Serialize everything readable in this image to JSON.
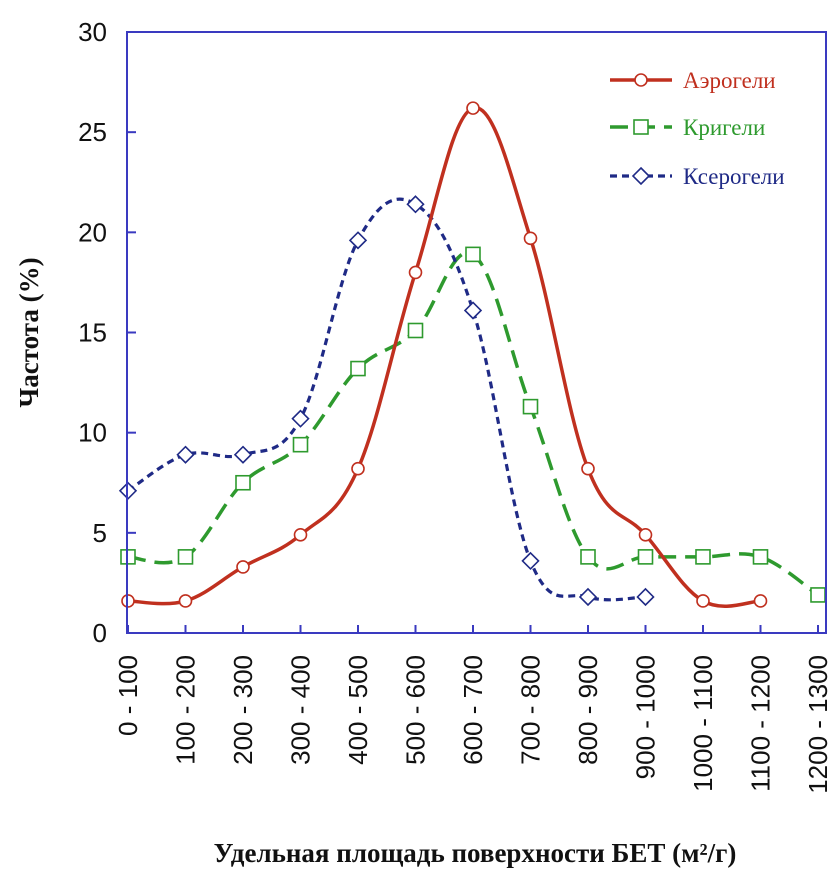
{
  "chart_data": {
    "type": "line",
    "xlabel": "Удельная площадь поверхности БЕТ (м²/г)",
    "ylabel": "Частота (%)",
    "ylim": [
      0,
      30
    ],
    "yticks": [
      "0",
      "5",
      "10",
      "15",
      "20",
      "25",
      "30"
    ],
    "categories": [
      "0 - 100",
      "100 - 200",
      "200 - 300",
      "300 - 400",
      "400 - 500",
      "500 - 600",
      "600 - 700",
      "700 - 800",
      "800 - 900",
      "900 - 1000",
      "1000 - 1100",
      "1100 - 1200",
      "1200 - 1300"
    ],
    "grid": false,
    "legend_position": "top-right",
    "series": [
      {
        "name": "Аэрогели",
        "color": "#c0301f",
        "line_style": "solid",
        "marker": "circle",
        "values": [
          1.6,
          1.6,
          3.3,
          4.9,
          8.2,
          18.0,
          26.2,
          19.7,
          8.2,
          4.9,
          1.6,
          1.6,
          null
        ]
      },
      {
        "name": "Кригели",
        "color": "#2e9a2e",
        "line_style": "dashed",
        "marker": "square",
        "values": [
          3.8,
          3.8,
          7.5,
          9.4,
          13.2,
          15.1,
          18.9,
          11.3,
          3.8,
          3.8,
          3.8,
          3.8,
          1.9
        ]
      },
      {
        "name": "Ксерогели",
        "color": "#1f2a86",
        "line_style": "dotted",
        "marker": "diamond",
        "values": [
          7.1,
          8.9,
          8.9,
          10.7,
          19.6,
          21.4,
          16.1,
          3.6,
          1.8,
          1.8,
          null,
          null,
          null
        ]
      }
    ]
  }
}
